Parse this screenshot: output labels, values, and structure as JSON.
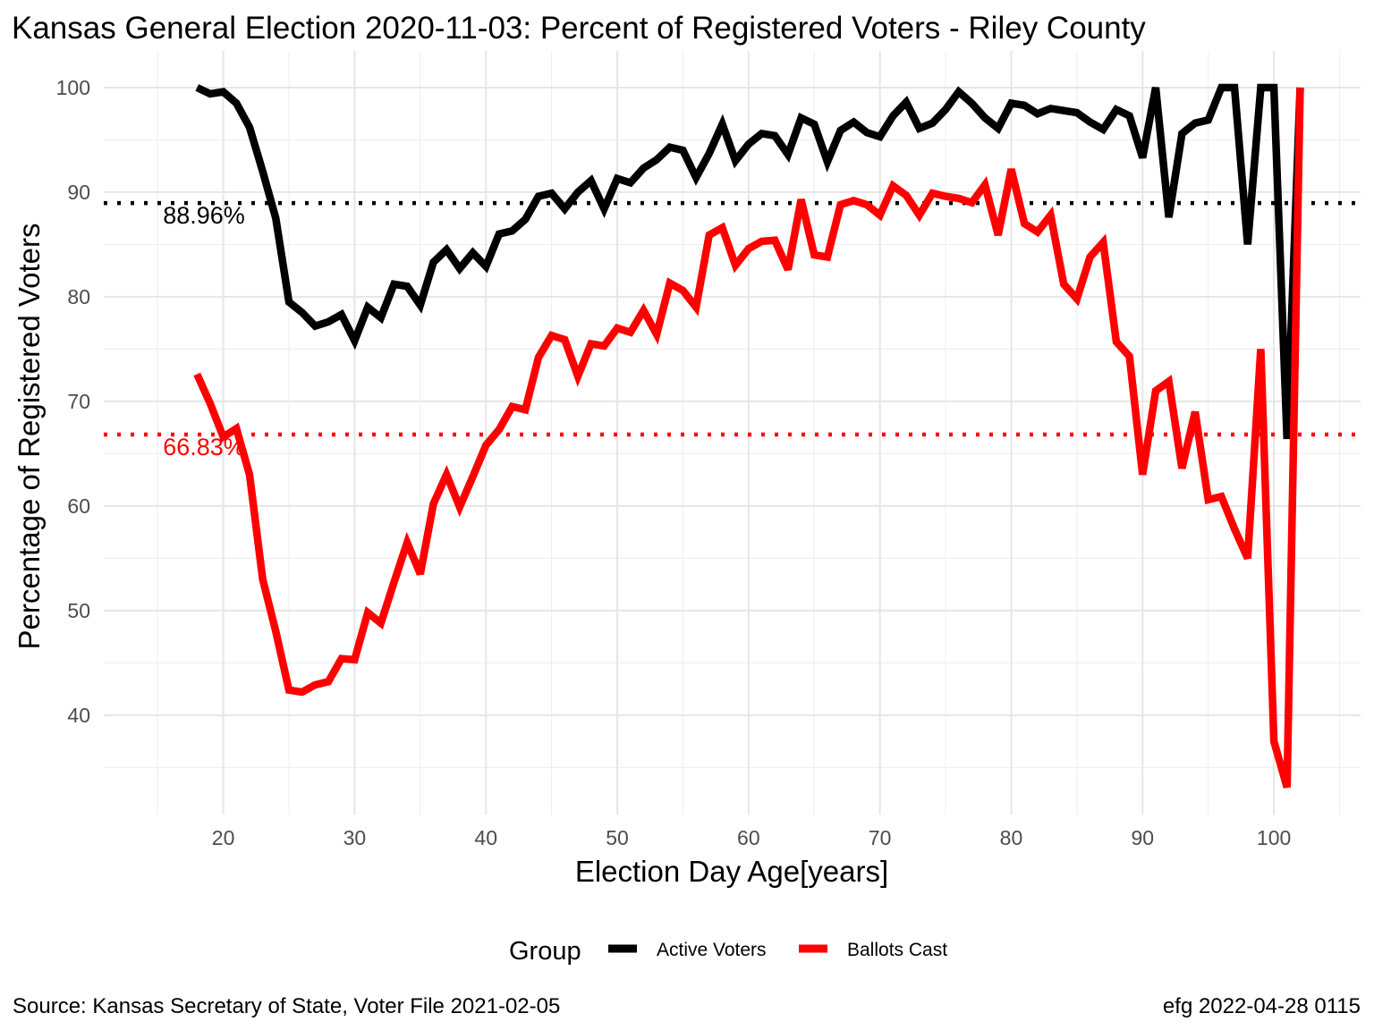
{
  "chart_data": {
    "type": "line",
    "title": "Kansas General Election 2020-11-03:  Percent of Registered Voters - Riley County",
    "xlabel": "Election Day Age[years]",
    "ylabel": "Percentage of Registered Voters",
    "xlim": [
      10.9,
      106.6
    ],
    "ylim": [
      30.5,
      103.5
    ],
    "x_ticks": [
      20,
      30,
      40,
      50,
      60,
      70,
      80,
      90,
      100
    ],
    "y_ticks": [
      40,
      50,
      60,
      70,
      80,
      90,
      100
    ],
    "grid": true,
    "legend": {
      "title": "Group",
      "position": "bottom",
      "entries": [
        "Active Voters",
        "Ballots Cast"
      ]
    },
    "reference_lines": [
      {
        "value": 88.96,
        "label": "88.96%",
        "color": "#000000"
      },
      {
        "value": 66.83,
        "label": "66.83%",
        "color": "#ff0000"
      }
    ],
    "x": [
      18,
      19,
      20,
      21,
      22,
      23,
      24,
      25,
      26,
      27,
      28,
      29,
      30,
      31,
      32,
      33,
      34,
      35,
      36,
      37,
      38,
      39,
      40,
      41,
      42,
      43,
      44,
      45,
      46,
      47,
      48,
      49,
      50,
      51,
      52,
      53,
      54,
      55,
      56,
      57,
      58,
      59,
      60,
      61,
      62,
      63,
      64,
      65,
      66,
      67,
      68,
      69,
      70,
      71,
      72,
      73,
      74,
      75,
      76,
      77,
      78,
      79,
      80,
      81,
      82,
      83,
      84,
      85,
      86,
      87,
      88,
      89,
      90,
      91,
      92,
      93,
      94,
      95,
      96,
      97,
      98,
      99,
      100,
      101,
      102
    ],
    "series": [
      {
        "name": "Active Voters",
        "color": "#000000",
        "values": [
          100,
          99.4,
          99.6,
          98.5,
          96.2,
          92.0,
          87.5,
          79.5,
          78.5,
          77.2,
          77.6,
          78.3,
          75.8,
          79.0,
          78.0,
          81.2,
          81.0,
          79.2,
          83.3,
          84.5,
          82.7,
          84.2,
          82.9,
          86.0,
          86.3,
          87.4,
          89.6,
          89.9,
          88.4,
          90.0,
          91.1,
          88.4,
          91.3,
          90.9,
          92.3,
          93.1,
          94.3,
          94.0,
          91.4,
          93.7,
          96.5,
          93.0,
          94.6,
          95.6,
          95.4,
          93.6,
          97.1,
          96.5,
          92.9,
          95.9,
          96.7,
          95.7,
          95.3,
          97.3,
          98.6,
          96.1,
          96.6,
          97.9,
          99.6,
          98.5,
          97.1,
          96.1,
          98.5,
          98.3,
          97.5,
          98.0,
          97.8,
          97.6,
          96.7,
          96.0,
          97.9,
          97.3,
          93.3,
          100,
          87.6,
          95.6,
          96.6,
          96.9,
          100,
          100,
          85.0,
          100,
          100,
          66.4,
          100
        ]
      },
      {
        "name": "Ballots Cast",
        "color": "#ff0000",
        "values": [
          72.6,
          69.8,
          66.6,
          67.4,
          63.0,
          53.0,
          48.0,
          42.4,
          42.2,
          42.9,
          43.2,
          45.4,
          45.3,
          49.8,
          48.8,
          52.7,
          56.5,
          53.5,
          60.2,
          63.0,
          59.9,
          62.8,
          65.8,
          67.3,
          69.5,
          69.2,
          74.2,
          76.3,
          75.9,
          72.4,
          75.5,
          75.3,
          77.0,
          76.6,
          78.7,
          76.4,
          81.3,
          80.6,
          79.0,
          85.9,
          86.6,
          83.0,
          84.6,
          85.3,
          85.4,
          82.6,
          89.3,
          84.0,
          83.8,
          88.8,
          89.2,
          88.8,
          87.8,
          90.6,
          89.7,
          87.8,
          89.9,
          89.6,
          89.4,
          89.0,
          90.7,
          85.9,
          92.2,
          87.0,
          86.2,
          87.8,
          81.2,
          79.8,
          83.8,
          85.2,
          75.7,
          74.3,
          63.0,
          71.0,
          71.9,
          63.6,
          69.0,
          60.6,
          60.9,
          57.8,
          55.0,
          75.0,
          37.5,
          33.1,
          100
        ]
      }
    ]
  },
  "source_text": "Source:  Kansas Secretary of State, Voter File  2021-02-05",
  "credit_text": "efg 2022-04-28 0115"
}
